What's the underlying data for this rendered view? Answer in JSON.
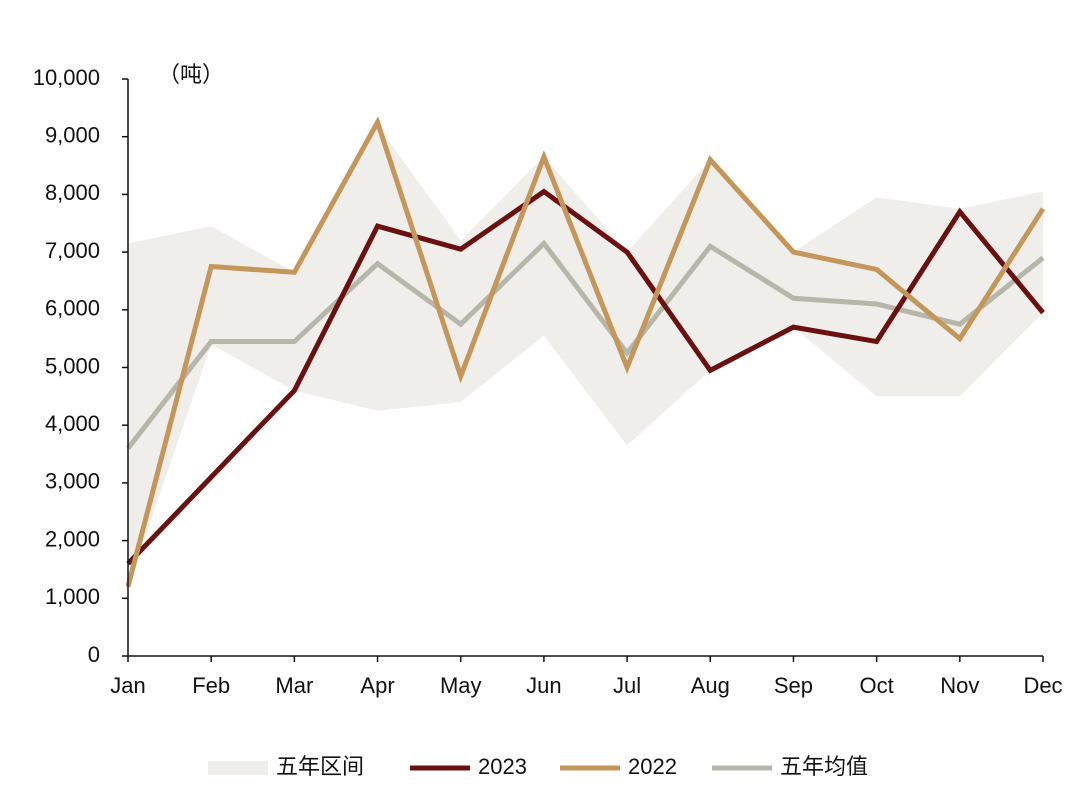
{
  "chart_data": {
    "type": "line",
    "unit_label": "（吨）",
    "categories": [
      "Jan",
      "Feb",
      "Mar",
      "Apr",
      "May",
      "Jun",
      "Jul",
      "Aug",
      "Sep",
      "Oct",
      "Nov",
      "Dec"
    ],
    "series": [
      {
        "name": "五年区间",
        "color": "#efeeea",
        "high": [
          7150,
          7450,
          6650,
          9200,
          7200,
          8650,
          7000,
          8600,
          7000,
          7950,
          7750,
          8050
        ],
        "low": [
          1200,
          5400,
          4600,
          4250,
          4400,
          5550,
          3650,
          4950,
          5700,
          4500,
          4500,
          5950
        ]
      },
      {
        "name": "2023",
        "color": "#6b1010",
        "values": [
          1600,
          3100,
          4600,
          7450,
          7050,
          8050,
          7000,
          4950,
          5700,
          5450,
          7700,
          5950
        ]
      },
      {
        "name": "2022",
        "color": "#c4965a",
        "values": [
          1200,
          6750,
          6650,
          9250,
          4850,
          8650,
          5000,
          8600,
          7000,
          6700,
          5500,
          7750
        ]
      },
      {
        "name": "五年均值",
        "color": "#b6b6aa",
        "values": [
          3600,
          5450,
          5450,
          6800,
          5750,
          7150,
          5250,
          7100,
          6200,
          6100,
          5750,
          6900
        ]
      }
    ],
    "ylim": [
      0,
      10000
    ],
    "yticks": [
      0,
      {
        "value": 1000,
        "label": "1,000"
      },
      {
        "value": 2000,
        "label": "2,000"
      },
      {
        "value": 3000,
        "label": "3,000"
      },
      {
        "value": 4000,
        "label": "4,000"
      },
      {
        "value": 5000,
        "label": "5,000"
      },
      {
        "value": 6000,
        "label": "6,000"
      },
      {
        "value": 7000,
        "label": "7,000"
      },
      {
        "value": 8000,
        "label": "8,000"
      },
      {
        "value": 9000,
        "label": "9,000"
      },
      {
        "value": 10000,
        "label": "10,000"
      }
    ],
    "grid": false
  }
}
